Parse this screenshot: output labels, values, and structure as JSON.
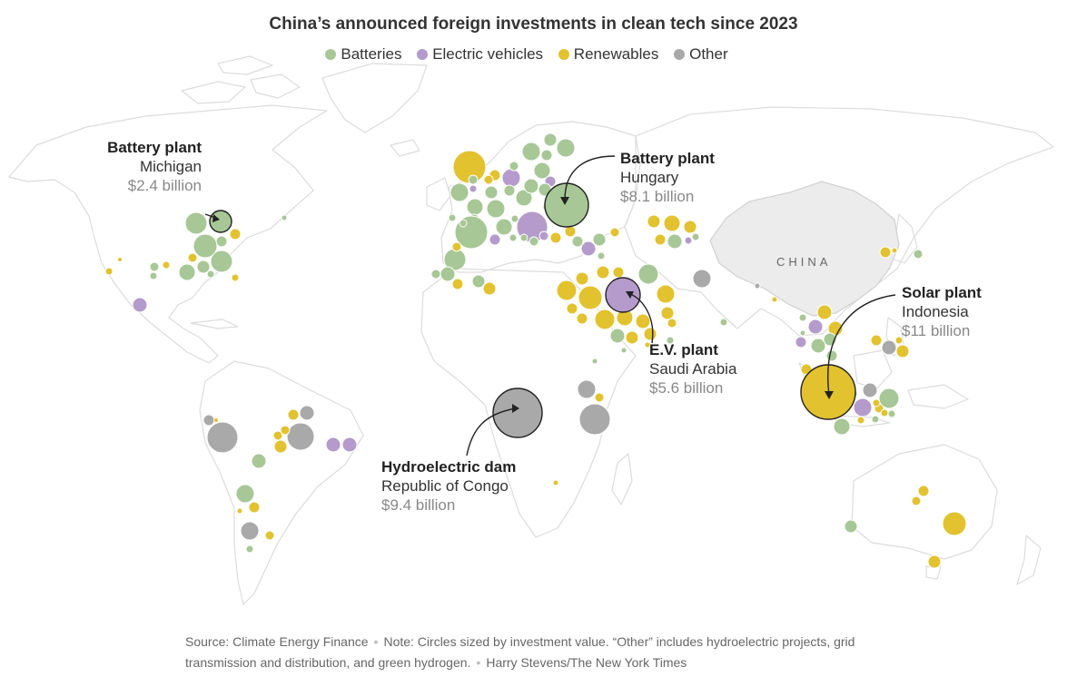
{
  "title": "China’s announced foreign investments in clean tech since 2023",
  "legend": [
    {
      "label": "Batteries",
      "color": "#a7c796"
    },
    {
      "label": "Electric vehicles",
      "color": "#b49bcb"
    },
    {
      "label": "Renewables",
      "color": "#e2c22e"
    },
    {
      "label": "Other",
      "color": "#a9a9a9"
    }
  ],
  "map_label": "CHINA",
  "callouts": {
    "michigan": {
      "kind": "Battery plant",
      "place": "Michigan",
      "amount": "$2.4 billion",
      "category": "Batteries"
    },
    "hungary": {
      "kind": "Battery plant",
      "place": "Hungary",
      "amount": "$8.1 billion",
      "category": "Batteries"
    },
    "indonesia": {
      "kind": "Solar plant",
      "place": "Indonesia",
      "amount": "$11 billion",
      "category": "Renewables"
    },
    "saudi": {
      "kind": "E.V. plant",
      "place": "Saudi Arabia",
      "amount": "$5.6 billion",
      "category": "Electric vehicles"
    },
    "congo": {
      "kind": "Hydroelectric dam",
      "place": "Republic of Congo",
      "amount": "$9.4 billion",
      "category": "Other"
    }
  },
  "footer": {
    "source": "Source: Climate Energy Finance",
    "note": "Note: Circles sized by investment value. “Other” includes hydroelectric projects, grid transmission and distribution, and green hydrogen.",
    "credit": "Harry Stevens/The New York Times"
  }
}
